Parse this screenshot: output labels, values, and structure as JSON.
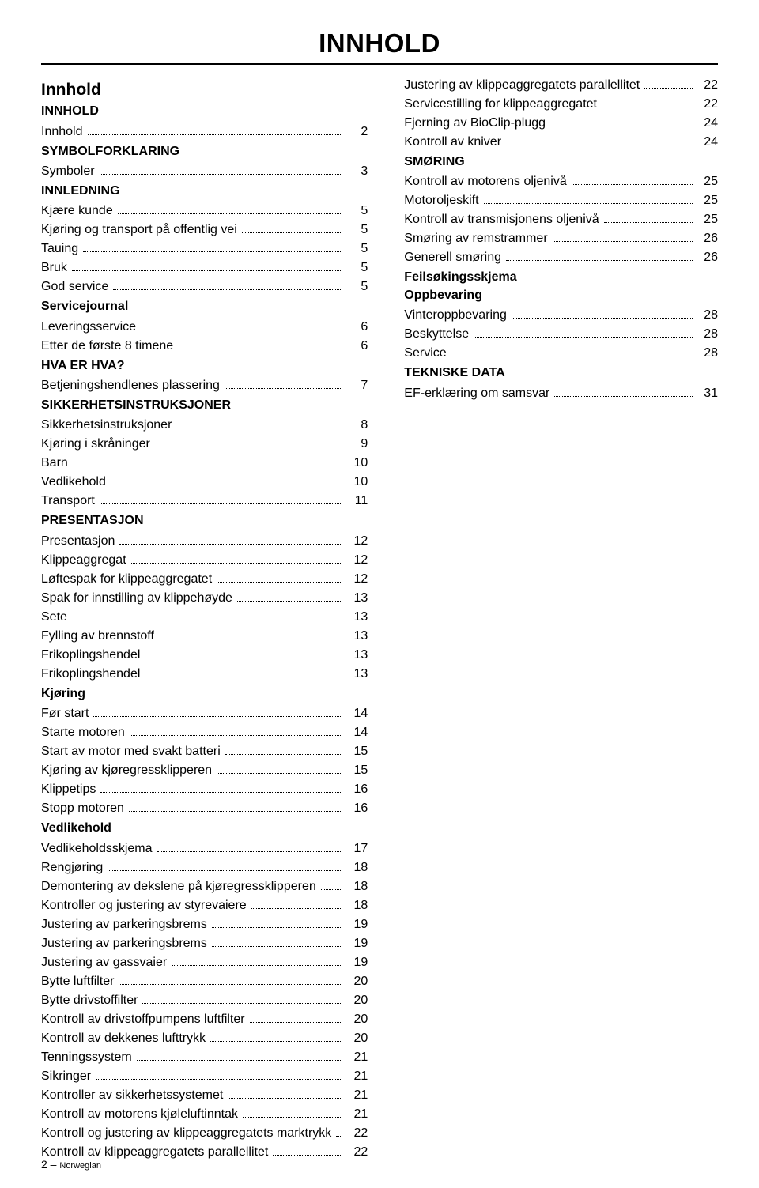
{
  "header": {
    "title": "INNHOLD",
    "main_title": "Innhold"
  },
  "footer": {
    "page_num": "2",
    "sep": " – ",
    "lang": "Norwegian"
  },
  "left": {
    "groups": [
      {
        "title": "INNHOLD",
        "entries": [
          {
            "label": "Innhold",
            "page": "2"
          }
        ]
      },
      {
        "title": "SYMBOLFORKLARING",
        "entries": [
          {
            "label": "Symboler",
            "page": "3"
          }
        ]
      },
      {
        "title": "INNLEDNING",
        "entries": [
          {
            "label": "Kjære kunde",
            "page": "5"
          },
          {
            "label": "Kjøring og transport på offentlig vei",
            "page": "5"
          },
          {
            "label": "Tauing",
            "page": "5"
          },
          {
            "label": "Bruk",
            "page": "5"
          },
          {
            "label": "God service",
            "page": "5"
          }
        ]
      },
      {
        "title": "Servicejournal",
        "entries": [
          {
            "label": "Leveringsservice",
            "page": "6"
          },
          {
            "label": "Etter de første 8 timene",
            "page": "6"
          }
        ]
      },
      {
        "title": "HVA ER HVA?",
        "entries": [
          {
            "label": "Betjeningshendlenes plassering",
            "page": "7"
          }
        ]
      },
      {
        "title": "SIKKERHETSINSTRUKSJONER",
        "entries": [
          {
            "label": "Sikkerhetsinstruksjoner",
            "page": "8"
          },
          {
            "label": "Kjøring i skråninger",
            "page": "9"
          },
          {
            "label": "Barn",
            "page": "10"
          },
          {
            "label": "Vedlikehold",
            "page": "10"
          },
          {
            "label": "Transport",
            "page": "11"
          }
        ]
      },
      {
        "title": "PRESENTASJON",
        "entries": [
          {
            "label": "Presentasjon",
            "page": "12"
          },
          {
            "label": "Klippeaggregat",
            "page": "12"
          },
          {
            "label": "Løftespak for klippeaggregatet",
            "page": "12"
          },
          {
            "label": "Spak for innstilling av klippehøyde",
            "page": "13"
          },
          {
            "label": "Sete",
            "page": "13"
          },
          {
            "label": "Fylling av brennstoff",
            "page": "13"
          },
          {
            "label": "Frikoplingshendel",
            "page": "13"
          },
          {
            "label": "Frikoplingshendel",
            "page": "13"
          }
        ]
      },
      {
        "title": "Kjøring",
        "entries": [
          {
            "label": "Før start",
            "page": "14"
          },
          {
            "label": "Starte motoren",
            "page": "14"
          },
          {
            "label": "Start av motor med svakt batteri",
            "page": "15"
          },
          {
            "label": "Kjøring av kjøregressklipperen",
            "page": "15"
          },
          {
            "label": "Klippetips",
            "page": "16"
          },
          {
            "label": "Stopp motoren",
            "page": "16"
          }
        ]
      },
      {
        "title": "Vedlikehold",
        "entries": [
          {
            "label": "Vedlikeholdsskjema",
            "page": "17"
          },
          {
            "label": "Rengjøring",
            "page": "18"
          },
          {
            "label": "Demontering av dekslene på kjøregressklipperen",
            "page": "18"
          },
          {
            "label": "Kontroller og justering av styrevaiere",
            "page": "18"
          },
          {
            "label": "Justering av parkeringsbrems",
            "page": "19"
          },
          {
            "label": "Justering av parkeringsbrems",
            "page": "19"
          },
          {
            "label": "Justering av gassvaier",
            "page": "19"
          },
          {
            "label": "Bytte luftfilter",
            "page": "20"
          },
          {
            "label": "Bytte drivstoffilter",
            "page": "20"
          },
          {
            "label": "Kontroll av drivstoffpumpens luftfilter",
            "page": "20"
          },
          {
            "label": "Kontroll av dekkenes lufttrykk",
            "page": "20"
          },
          {
            "label": "Tenningssystem",
            "page": "21"
          },
          {
            "label": "Sikringer",
            "page": "21"
          },
          {
            "label": "Kontroller av sikkerhetssystemet",
            "page": "21"
          },
          {
            "label": "Kontroll av motorens kjøleluftinntak",
            "page": "21"
          },
          {
            "label": "Kontroll og justering av klippeaggregatets marktrykk",
            "page": "22"
          },
          {
            "label": "Kontroll av klippeaggregatets parallellitet",
            "page": "22"
          }
        ]
      }
    ]
  },
  "right": {
    "groups": [
      {
        "title": null,
        "entries": [
          {
            "label": "Justering av klippeaggregatets parallellitet",
            "page": "22"
          },
          {
            "label": "Servicestilling for klippeaggregatet",
            "page": "22"
          },
          {
            "label": "Fjerning av BioClip-plugg",
            "page": "24"
          },
          {
            "label": "Kontroll av kniver",
            "page": "24"
          }
        ]
      },
      {
        "title": "SMØRING",
        "entries": [
          {
            "label": "Kontroll av motorens oljenivå",
            "page": "25"
          },
          {
            "label": "Motoroljeskift",
            "page": "25"
          },
          {
            "label": "Kontroll av transmisjonens oljenivå",
            "page": "25"
          },
          {
            "label": "Smøring av remstrammer",
            "page": "26"
          },
          {
            "label": "Generell smøring",
            "page": "26"
          }
        ]
      },
      {
        "title": "Feilsøkingsskjema",
        "entries": []
      },
      {
        "title": "Oppbevaring",
        "entries": [
          {
            "label": "Vinteroppbevaring",
            "page": "28"
          },
          {
            "label": "Beskyttelse",
            "page": "28"
          },
          {
            "label": "Service",
            "page": "28"
          }
        ]
      },
      {
        "title": "TEKNISKE DATA",
        "entries": [
          {
            "label": "EF-erklæring om samsvar",
            "page": "31"
          }
        ]
      }
    ]
  }
}
